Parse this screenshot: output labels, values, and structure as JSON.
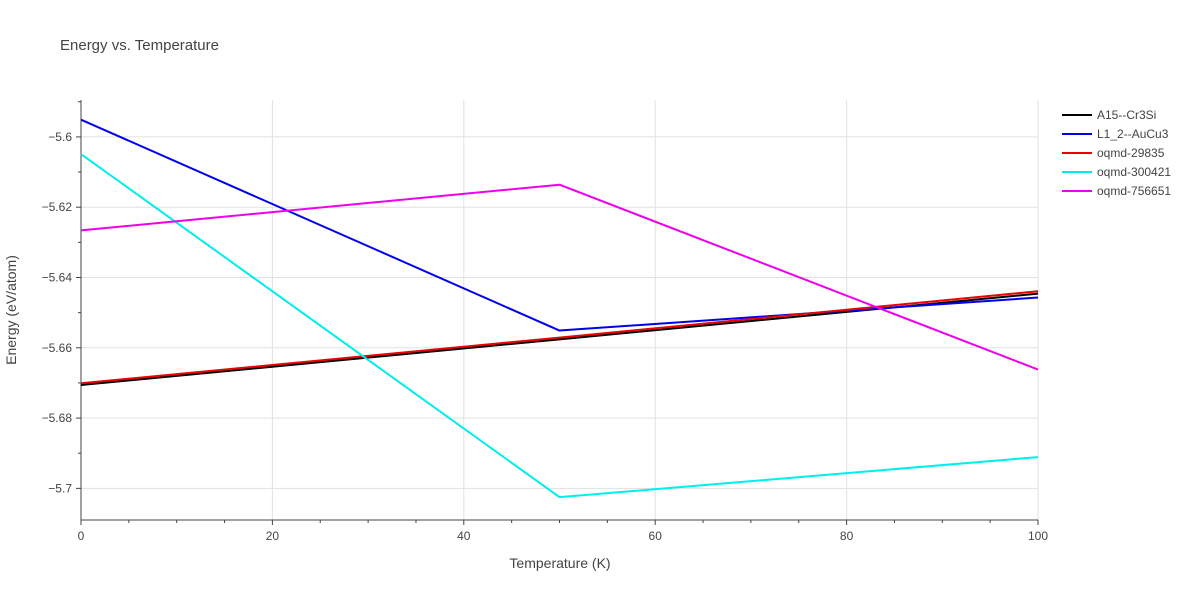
{
  "chart_data": {
    "type": "line",
    "title": "Energy vs. Temperature",
    "xlabel": "Temperature (K)",
    "ylabel": "Energy (eV/atom)",
    "xlim": [
      0,
      100
    ],
    "ylim": [
      -5.709,
      -5.5895
    ],
    "grid": true,
    "legend_position": "top-right",
    "x_ticks": [
      0,
      20,
      40,
      60,
      80,
      100
    ],
    "x_tick_labels": [
      "0",
      "20",
      "40",
      "60",
      "80",
      "100"
    ],
    "y_ticks": [
      -5.6,
      -5.62,
      -5.64,
      -5.66,
      -5.68,
      -5.7
    ],
    "y_tick_labels": [
      "−5.6",
      "−5.62",
      "−5.64",
      "−5.66",
      "−5.68",
      "−5.7"
    ],
    "x_minor_step": 5,
    "series": [
      {
        "name": "A15--Cr3Si",
        "color": "#000000",
        "x": [
          0,
          50,
          100
        ],
        "y": [
          -5.6706,
          -5.6576,
          -5.6446
        ]
      },
      {
        "name": "L1_2--AuCu3",
        "color": "#0000ee",
        "x": [
          0,
          50,
          100
        ],
        "y": [
          -5.5951,
          -5.6551,
          -5.6457
        ]
      },
      {
        "name": "oqmd-29835",
        "color": "#ee0000",
        "x": [
          0,
          50,
          100
        ],
        "y": [
          -5.6701,
          -5.6571,
          -5.6439
        ]
      },
      {
        "name": "oqmd-300421",
        "color": "#00eeee",
        "x": [
          0,
          50,
          100
        ],
        "y": [
          -5.6049,
          -5.7025,
          -5.6911
        ]
      },
      {
        "name": "oqmd-756651",
        "color": "#ee00ee",
        "x": [
          0,
          50,
          100
        ],
        "y": [
          -5.6266,
          -5.6136,
          -5.6662
        ]
      }
    ]
  }
}
